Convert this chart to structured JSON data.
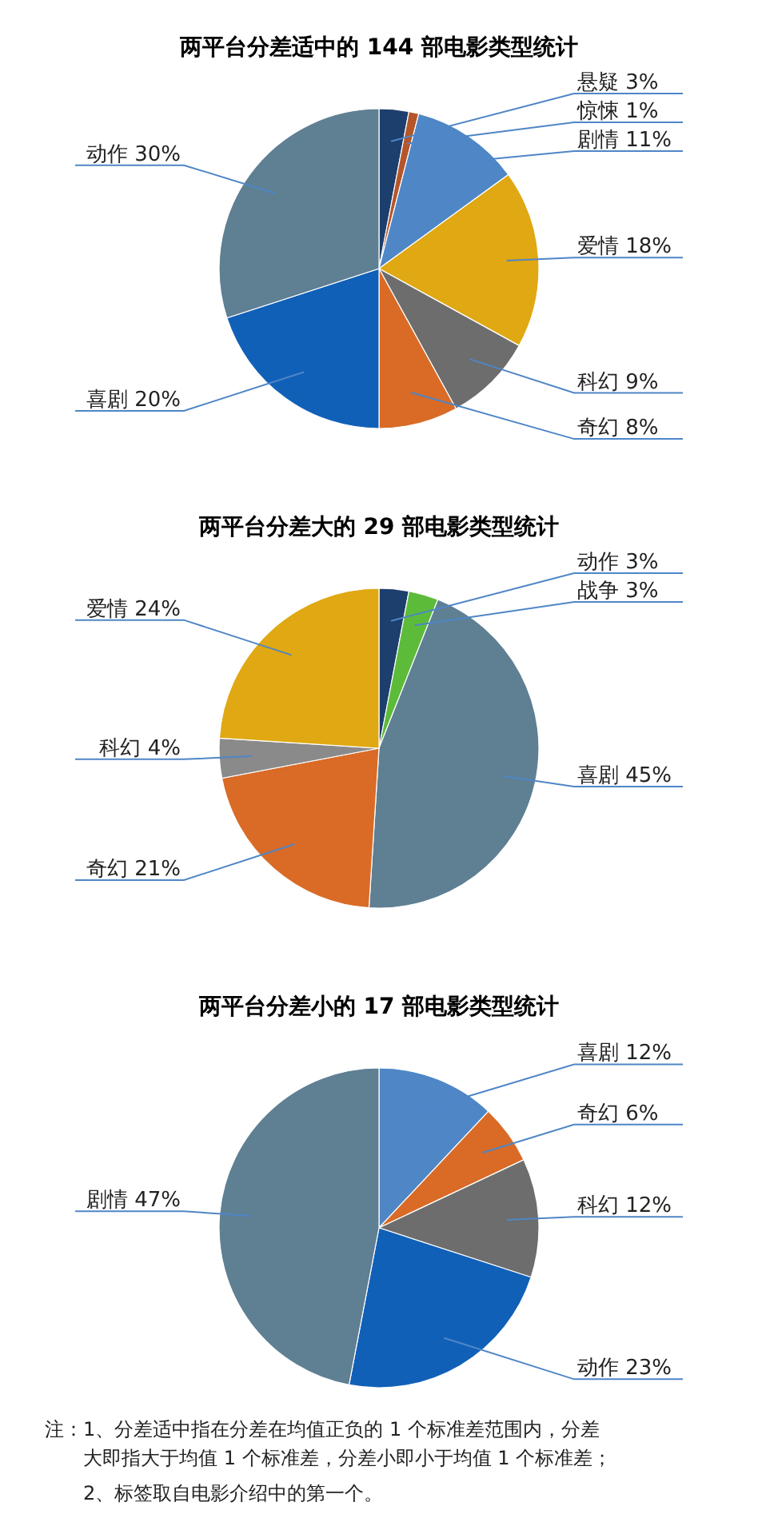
{
  "chart_data": [
    {
      "type": "pie",
      "title": "两平台分差适中的 144 部电影类型统计",
      "categories": [
        "悬疑",
        "惊悚",
        "剧情",
        "爱情",
        "科幻",
        "奇幻",
        "喜剧",
        "动作"
      ],
      "values": [
        3,
        1,
        11,
        18,
        9,
        8,
        20,
        30
      ],
      "value_labels": [
        "3%",
        "1%",
        "11%",
        "18%",
        "9%",
        "8%",
        "20%",
        "30%"
      ],
      "colors": [
        "#1d3f6e",
        "#b5562a",
        "#4f86c6",
        "#e0a812",
        "#6d6d6d",
        "#d96b27",
        "#1160b8",
        "#5f7f93"
      ]
    },
    {
      "type": "pie",
      "title": "两平台分差大的 29 部电影类型统计",
      "categories": [
        "动作",
        "战争",
        "喜剧",
        "奇幻",
        "科幻",
        "爱情"
      ],
      "values": [
        3,
        3,
        45,
        21,
        4,
        24
      ],
      "value_labels": [
        "3%",
        "3%",
        "45%",
        "21%",
        "4%",
        "24%"
      ],
      "colors": [
        "#1d3f6e",
        "#5dbb3a",
        "#5f7f93",
        "#d96b27",
        "#8a8a8a",
        "#e0a812"
      ]
    },
    {
      "type": "pie",
      "title": "两平台分差小的 17 部电影类型统计",
      "categories": [
        "喜剧",
        "奇幻",
        "科幻",
        "动作",
        "剧情"
      ],
      "values": [
        12,
        6,
        12,
        23,
        47
      ],
      "value_labels": [
        "12%",
        "6%",
        "12%",
        "23%",
        "47%"
      ],
      "colors": [
        "#4f86c6",
        "#d96b27",
        "#6d6d6d",
        "#1160b8",
        "#5f7f93"
      ],
      "annotations": [
        "注：1、分差适中指在分差在均值正负的 1 个标准差范围内，分差大即指大于均值 1 个标准差，分差小即小于均值 1 个标准差；",
        "2、标签取自电影介绍中的第一个。"
      ]
    }
  ]
}
